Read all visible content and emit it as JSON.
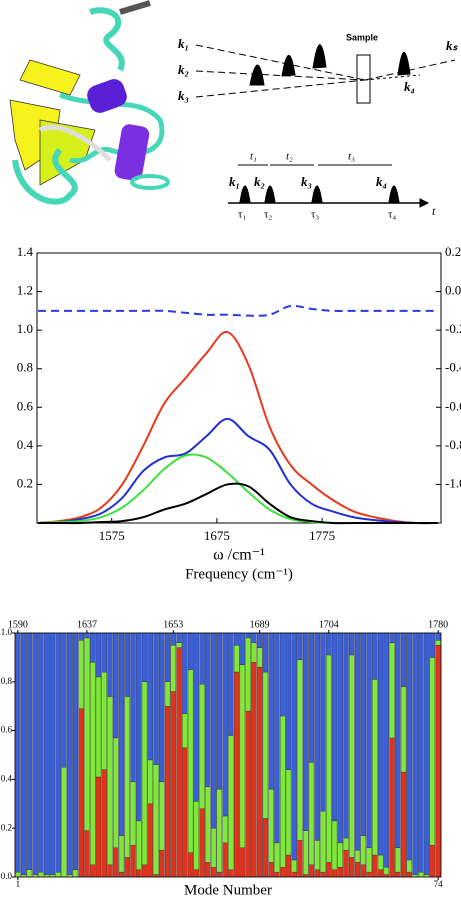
{
  "diagram": {
    "beams": [
      "k₁",
      "k₂",
      "k₃"
    ],
    "sample": "Sample",
    "signal": "kₛ",
    "local": "k₄",
    "delays": [
      "t₁",
      "t₂",
      "t₃"
    ],
    "pulses": [
      "k₁",
      "k₂",
      "k₃",
      "k₄"
    ],
    "times": [
      "τ₁",
      "τ₂",
      "τ₃",
      "τ₄"
    ],
    "time_axis": "t"
  },
  "chart_data": [
    {
      "type": "line",
      "xlabel": "ω /cm⁻¹",
      "xlabel2": "Frequency (cm⁻¹)",
      "x": [
        1505,
        1525,
        1545,
        1565,
        1585,
        1605,
        1625,
        1645,
        1665,
        1685,
        1705,
        1725,
        1745,
        1765,
        1785,
        1805,
        1825,
        1845,
        1865,
        1885
      ],
      "xlim": [
        1504,
        1888
      ],
      "xticks": [
        1575,
        1675,
        1775
      ],
      "ylim": [
        0,
        1.4
      ],
      "yticks": [
        0.2,
        0.4,
        0.6,
        0.8,
        {
          "value": 1,
          "label": "1.0"
        },
        1.2,
        1.4
      ],
      "y2lim": [
        -1.2,
        0.2
      ],
      "y2ticks": [
        0.2,
        {
          "value": 0,
          "label": "0.0"
        },
        -0.2,
        -0.4,
        -0.6,
        -0.8,
        {
          "value": -1,
          "label": "-1.0"
        }
      ],
      "series": [
        {
          "color": "#e8391f",
          "values": [
            0,
            0.01,
            0.03,
            0.08,
            0.2,
            0.4,
            0.62,
            0.75,
            0.88,
            0.99,
            0.82,
            0.5,
            0.3,
            0.2,
            0.12,
            0.06,
            0.03,
            0.01,
            0,
            0
          ]
        },
        {
          "color": "#1f2fd0",
          "values": [
            0,
            0.005,
            0.02,
            0.05,
            0.13,
            0.27,
            0.34,
            0.36,
            0.45,
            0.54,
            0.45,
            0.38,
            0.2,
            0.1,
            0.06,
            0.03,
            0.015,
            0.005,
            0,
            0
          ]
        },
        {
          "color": "#3ee03a",
          "values": [
            0,
            0.005,
            0.01,
            0.03,
            0.08,
            0.17,
            0.28,
            0.35,
            0.34,
            0.26,
            0.16,
            0.07,
            0.02,
            0.005,
            0,
            0,
            0,
            0,
            0,
            0
          ]
        },
        {
          "color": "#000000",
          "values": [
            0,
            0,
            0,
            0.005,
            0.01,
            0.03,
            0.07,
            0.1,
            0.15,
            0.2,
            0.19,
            0.1,
            0.03,
            0.01,
            0,
            0,
            0,
            0,
            0,
            0
          ]
        },
        {
          "color": "#2a3be0",
          "dashed": true,
          "axis": "y2",
          "values": [
            -0.1,
            -0.1,
            -0.1,
            -0.1,
            -0.1,
            -0.1,
            -0.1,
            -0.11,
            -0.12,
            -0.12,
            -0.125,
            -0.12,
            -0.075,
            -0.09,
            -0.1,
            -0.1,
            -0.1,
            -0.1,
            -0.1,
            -0.1
          ]
        }
      ]
    },
    {
      "type": "stacked_bar",
      "xlabel": "Mode Number",
      "x": [
        1,
        2,
        3,
        4,
        5,
        6,
        7,
        8,
        9,
        10,
        11,
        12,
        13,
        14,
        15,
        16,
        17,
        18,
        19,
        20,
        21,
        22,
        23,
        24,
        25,
        26,
        27,
        28,
        29,
        30,
        31,
        32,
        33,
        34,
        35,
        36,
        37,
        38,
        39,
        40,
        41,
        42,
        43,
        44,
        45,
        46,
        47,
        48,
        49,
        50,
        51,
        52,
        53,
        54,
        55,
        56,
        57,
        58,
        59,
        60,
        61,
        62,
        63,
        64,
        65,
        66,
        67,
        68,
        69,
        70,
        71,
        72,
        73,
        74
      ],
      "xlim": [
        0.5,
        74.5
      ],
      "xticks": [
        1,
        74
      ],
      "x2ticks": [
        {
          "value": 1,
          "label": "1590"
        },
        {
          "value": 13,
          "label": "1637"
        },
        {
          "value": 28,
          "label": "1653"
        },
        {
          "value": 43,
          "label": "1689"
        },
        {
          "value": 55,
          "label": "1704"
        },
        {
          "value": 74,
          "label": "1780"
        }
      ],
      "ylim": [
        0,
        1
      ],
      "yticks": [
        {
          "value": 0,
          "label": "0.0"
        },
        0.2,
        0.4,
        0.6,
        0.8,
        {
          "value": 1,
          "label": "1.0"
        }
      ],
      "series": [
        {
          "color": "#e0321c",
          "values": [
            0,
            0,
            0,
            0,
            0,
            0,
            0,
            0,
            0,
            0,
            0,
            0.69,
            0.19,
            0.05,
            0.41,
            0.44,
            0.05,
            0.12,
            0.02,
            0.08,
            0.13,
            0.03,
            0.05,
            0.3,
            0.01,
            0.11,
            0.7,
            0.76,
            0.94,
            0.53,
            0.1,
            0.03,
            0.28,
            0.06,
            0.04,
            0.02,
            0.14,
            0.03,
            0.84,
            0.12,
            0.68,
            0.88,
            0.86,
            0.24,
            0.06,
            0.02,
            0.04,
            0.09,
            0.02,
            0.15,
            0.01,
            0.05,
            0.03,
            0.02,
            0.06,
            0.03,
            0.04,
            0.11,
            0.08,
            0.06,
            0.05,
            0.02,
            0.09,
            0.03,
            0.01,
            0.57,
            0.02,
            0.43,
            0.02,
            0,
            0,
            0,
            0.13,
            0.95
          ]
        },
        {
          "color": "#7fe83a",
          "values": [
            0.02,
            0.01,
            0.03,
            0.01,
            0.02,
            0.01,
            0.01,
            0.02,
            0.45,
            0.01,
            0.03,
            0.28,
            0.79,
            0.83,
            0.41,
            0.4,
            0.69,
            0.45,
            0.15,
            0.66,
            0.26,
            0.2,
            0.75,
            0.18,
            0.45,
            0.28,
            0.1,
            0.19,
            0.02,
            0.14,
            0.75,
            0.28,
            0.51,
            0.31,
            0.16,
            0.34,
            0.11,
            0.55,
            0.11,
            0.75,
            0.3,
            0.08,
            0.08,
            0.6,
            0.3,
            0.12,
            0.62,
            0.35,
            0.05,
            0.74,
            0.18,
            0.42,
            0.12,
            0.25,
            0.85,
            0.2,
            0.1,
            0.05,
            0.83,
            0.05,
            0.12,
            0.1,
            0.72,
            0.06,
            0.03,
            0.39,
            0.1,
            0.35,
            0.05,
            0.01,
            0.02,
            0.01,
            0.77,
            0.02
          ]
        },
        {
          "color": "#3b5fd6",
          "values": [
            0.98,
            0.99,
            0.97,
            0.99,
            0.98,
            0.99,
            0.99,
            0.98,
            0.55,
            0.99,
            0.97,
            0.03,
            0.02,
            0.12,
            0.18,
            0.16,
            0.26,
            0.43,
            0.83,
            0.26,
            0.61,
            0.77,
            0.2,
            0.52,
            0.54,
            0.61,
            0.2,
            0.05,
            0.04,
            0.33,
            0.15,
            0.69,
            0.21,
            0.63,
            0.8,
            0.64,
            0.75,
            0.42,
            0.05,
            0.13,
            0.02,
            0.04,
            0.06,
            0.16,
            0.64,
            0.86,
            0.34,
            0.56,
            0.93,
            0.11,
            0.81,
            0.53,
            0.85,
            0.73,
            0.09,
            0.77,
            0.86,
            0.84,
            0.09,
            0.89,
            0.83,
            0.88,
            0.19,
            0.91,
            0.96,
            0.04,
            0.88,
            0.22,
            0.93,
            0.99,
            0.98,
            0.99,
            0.1,
            0.03
          ]
        }
      ]
    }
  ]
}
